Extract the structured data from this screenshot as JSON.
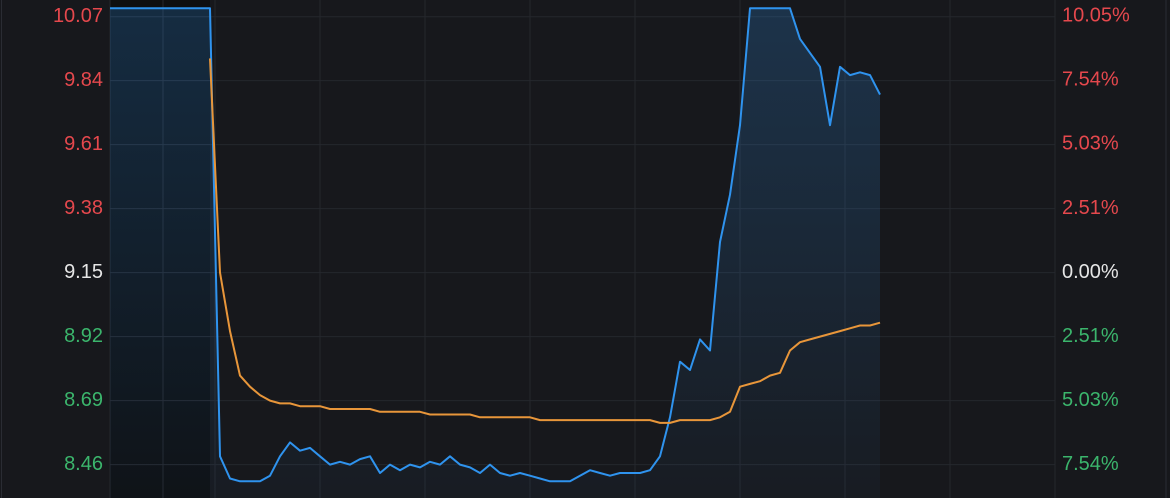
{
  "chart_data": {
    "type": "line",
    "x": [
      0,
      1,
      2,
      3,
      4,
      5,
      6,
      7,
      8,
      9,
      10,
      11,
      12,
      13,
      14,
      15,
      16,
      17,
      18,
      19,
      20,
      21,
      22,
      23,
      24,
      25,
      26,
      27,
      28,
      29,
      30,
      31,
      32,
      33,
      34,
      35,
      36,
      37,
      38,
      39,
      40,
      41,
      42,
      43,
      44,
      45,
      46,
      47,
      48,
      49,
      50,
      51,
      52,
      53,
      54,
      55,
      56,
      57,
      58,
      59,
      60,
      61,
      62,
      63,
      64,
      65,
      66,
      67,
      68,
      69,
      70,
      71,
      72,
      73,
      74,
      75,
      76,
      77
    ],
    "xlim": [
      0,
      94.5
    ],
    "ylim": [
      8.34,
      10.13
    ],
    "yticks": [
      10.07,
      9.84,
      9.61,
      9.38,
      9.15,
      8.92,
      8.69,
      8.46
    ],
    "y2lim": [
      -8.84,
      10.69
    ],
    "y2ticks": [
      {
        "value": 10.05,
        "label": "10.05%"
      },
      {
        "value": 7.54,
        "label": "7.54%"
      },
      {
        "value": 5.03,
        "label": "5.03%"
      },
      {
        "value": 2.51,
        "label": "2.51%"
      },
      {
        "value": 0,
        "label": "0.00%"
      },
      {
        "value": -2.51,
        "label": "2.51%"
      },
      {
        "value": -5.03,
        "label": "5.03%"
      },
      {
        "value": -7.54,
        "label": "7.54%"
      }
    ],
    "grid": true,
    "up_color": "#e5484d",
    "down_color": "#3bb56c",
    "base_color": "#e6e6e6",
    "series": [
      {
        "color": "#2f93ee",
        "area": true,
        "values": [
          10.1,
          10.1,
          10.1,
          10.1,
          10.1,
          10.1,
          10.1,
          10.1,
          10.1,
          10.1,
          10.1,
          8.49,
          8.41,
          8.4,
          8.4,
          8.4,
          8.42,
          8.49,
          8.54,
          8.51,
          8.52,
          8.49,
          8.46,
          8.47,
          8.46,
          8.48,
          8.49,
          8.43,
          8.46,
          8.44,
          8.46,
          8.45,
          8.47,
          8.46,
          8.49,
          8.46,
          8.45,
          8.43,
          8.46,
          8.43,
          8.42,
          8.43,
          8.42,
          8.41,
          8.4,
          8.4,
          8.4,
          8.42,
          8.44,
          8.43,
          8.42,
          8.43,
          8.43,
          8.43,
          8.44,
          8.49,
          8.63,
          8.83,
          8.8,
          8.91,
          8.87,
          9.26,
          9.43,
          9.68,
          10.1,
          10.1,
          10.1,
          10.1,
          10.1,
          9.99,
          9.94,
          9.89,
          9.68,
          9.89,
          9.86,
          9.87,
          9.86,
          9.79
        ]
      },
      {
        "color": "#e8963a",
        "values": [
          null,
          null,
          null,
          null,
          null,
          null,
          null,
          null,
          null,
          null,
          9.92,
          9.15,
          8.94,
          8.78,
          8.74,
          8.71,
          8.69,
          8.68,
          8.68,
          8.67,
          8.67,
          8.67,
          8.66,
          8.66,
          8.66,
          8.66,
          8.66,
          8.65,
          8.65,
          8.65,
          8.65,
          8.65,
          8.64,
          8.64,
          8.64,
          8.64,
          8.64,
          8.63,
          8.63,
          8.63,
          8.63,
          8.63,
          8.63,
          8.62,
          8.62,
          8.62,
          8.62,
          8.62,
          8.62,
          8.62,
          8.62,
          8.62,
          8.62,
          8.62,
          8.62,
          8.61,
          8.61,
          8.62,
          8.62,
          8.62,
          8.62,
          8.63,
          8.65,
          8.74,
          8.75,
          8.76,
          8.78,
          8.79,
          8.87,
          8.9,
          8.91,
          8.92,
          8.93,
          8.94,
          8.95,
          8.96,
          8.96,
          8.97
        ]
      }
    ]
  }
}
